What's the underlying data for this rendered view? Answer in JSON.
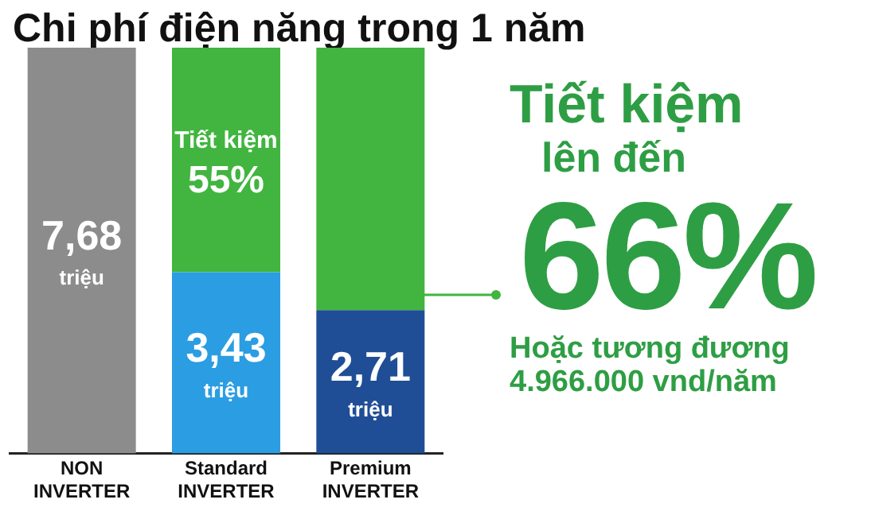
{
  "chart_data": {
    "type": "bar",
    "title": "Chi phí điện năng trong 1 năm",
    "categories": [
      "NON INVERTER",
      "Standard INVERTER",
      "Premium INVERTER"
    ],
    "stacked": true,
    "series": [
      {
        "colors": [
          "#8c8c8c",
          "#2b9de2",
          "#1f4e96"
        ],
        "values": [
          7.68,
          3.43,
          2.71
        ],
        "value_labels": [
          "7,68 triệu",
          "3,43 triệu",
          "2,71 triệu"
        ]
      },
      {
        "color": "#41b53f",
        "values": [
          null,
          4.25,
          4.97
        ],
        "value_labels": [
          null,
          "Tiết kiệm 55%",
          null
        ]
      }
    ],
    "annotations": [
      "Tiết kiệm",
      "lên đến",
      "66%",
      "Hoặc tương đương",
      "4.966.000 vnd/năm"
    ]
  }
}
